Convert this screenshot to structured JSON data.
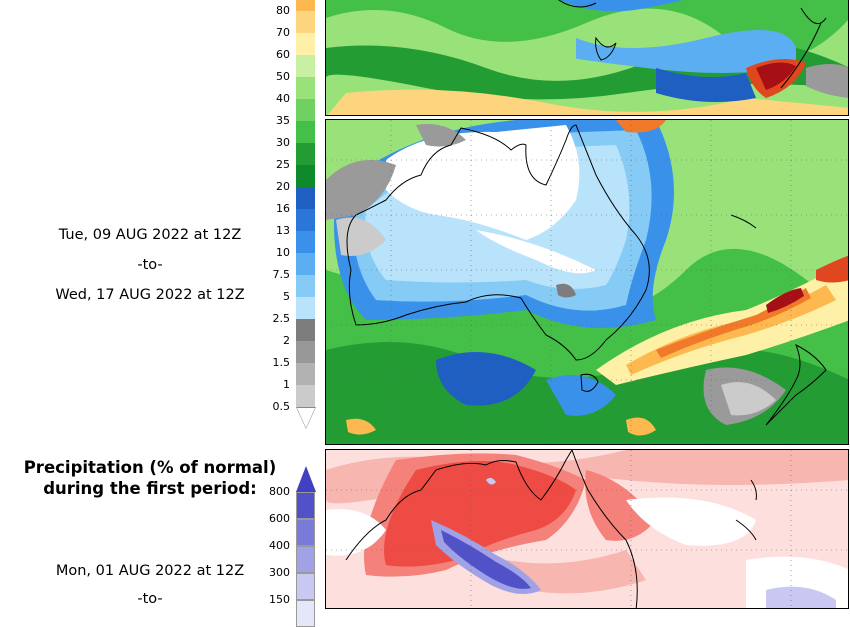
{
  "legend_top": {
    "ticks": [
      "80",
      "70",
      "60",
      "50",
      "40",
      "35",
      "30",
      "25",
      "20",
      "16",
      "13",
      "10",
      "7.5",
      "5",
      "2.5",
      "2",
      "1.5",
      "1",
      "0.5"
    ],
    "colors": [
      "#fdb94f",
      "#fdd57e",
      "#fef0a6",
      "#c7f0a3",
      "#99e27a",
      "#6fd161",
      "#44bf47",
      "#239c34",
      "#0f8a2a",
      "#1f5fc2",
      "#2b77d9",
      "#3a91ea",
      "#5aaef1",
      "#86cbf6",
      "#b8e3fa",
      "#7d7d7d",
      "#989898",
      "#b2b2b2",
      "#cbcbcb"
    ]
  },
  "period1": {
    "start": "Tue, 09 AUG 2022 at 12Z",
    "sep": "-to-",
    "end": "Wed, 17 AUG 2022 at 12Z"
  },
  "pct_section": {
    "heading_line1": "Precipitation (% of normal)",
    "heading_line2": "during the first period:",
    "ticks": [
      "800",
      "600",
      "400",
      "300",
      "150"
    ],
    "colors": [
      "#5252c8",
      "#7a7ad8",
      "#a1a1e6",
      "#c8c8f2",
      "#e6e6fa"
    ],
    "start": "Mon, 01 AUG 2022 at 12Z",
    "sep": "-to-"
  }
}
